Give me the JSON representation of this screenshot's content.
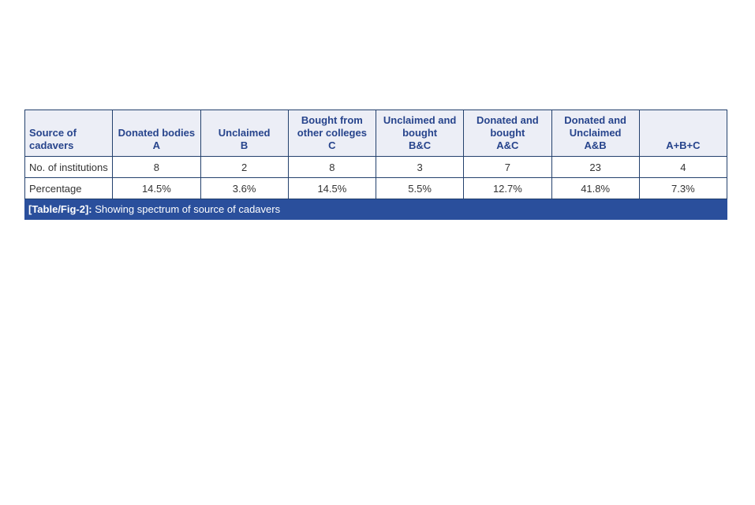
{
  "colors": {
    "page_background": "#ffffff",
    "header_background": "#eceef6",
    "header_text": "#27448c",
    "body_text": "#333333",
    "border": "#24416d",
    "caption_background": "#2a4f9c",
    "caption_text": "#ffffff"
  },
  "table": {
    "columns": [
      {
        "text": "Source of\ncadavers"
      },
      {
        "text": "Donated bodies\nA"
      },
      {
        "text": "Unclaimed\nB"
      },
      {
        "text": "Bought from\nother colleges\nC"
      },
      {
        "text": "Unclaimed and\nbought\nB&C"
      },
      {
        "text": "Donated and\nbought\nA&C"
      },
      {
        "text": "Donated and\nUnclaimed\nA&B"
      },
      {
        "text": "A+B+C"
      }
    ],
    "rows": [
      {
        "label": "No. of institutions",
        "values": [
          "8",
          "2",
          "8",
          "3",
          "7",
          "23",
          "4"
        ]
      },
      {
        "label": "Percentage",
        "values": [
          "14.5%",
          "3.6%",
          "14.5%",
          "5.5%",
          "12.7%",
          "41.8%",
          "7.3%"
        ]
      }
    ],
    "caption": {
      "label": "[Table/Fig-2]:",
      "text": " Showing spectrum of source of cadavers"
    }
  },
  "chart_data": {
    "type": "table",
    "title": "[Table/Fig-2]: Showing spectrum of source of cadavers",
    "columns": [
      "Source of cadavers",
      "Donated bodies A",
      "Unclaimed B",
      "Bought from other colleges C",
      "Unclaimed and bought B&C",
      "Donated and bought A&C",
      "Donated and Unclaimed A&B",
      "A+B+C"
    ],
    "rows": [
      [
        "No. of institutions",
        8,
        2,
        8,
        3,
        7,
        23,
        4
      ],
      [
        "Percentage",
        "14.5%",
        "3.6%",
        "14.5%",
        "5.5%",
        "12.7%",
        "41.8%",
        "7.3%"
      ]
    ]
  }
}
